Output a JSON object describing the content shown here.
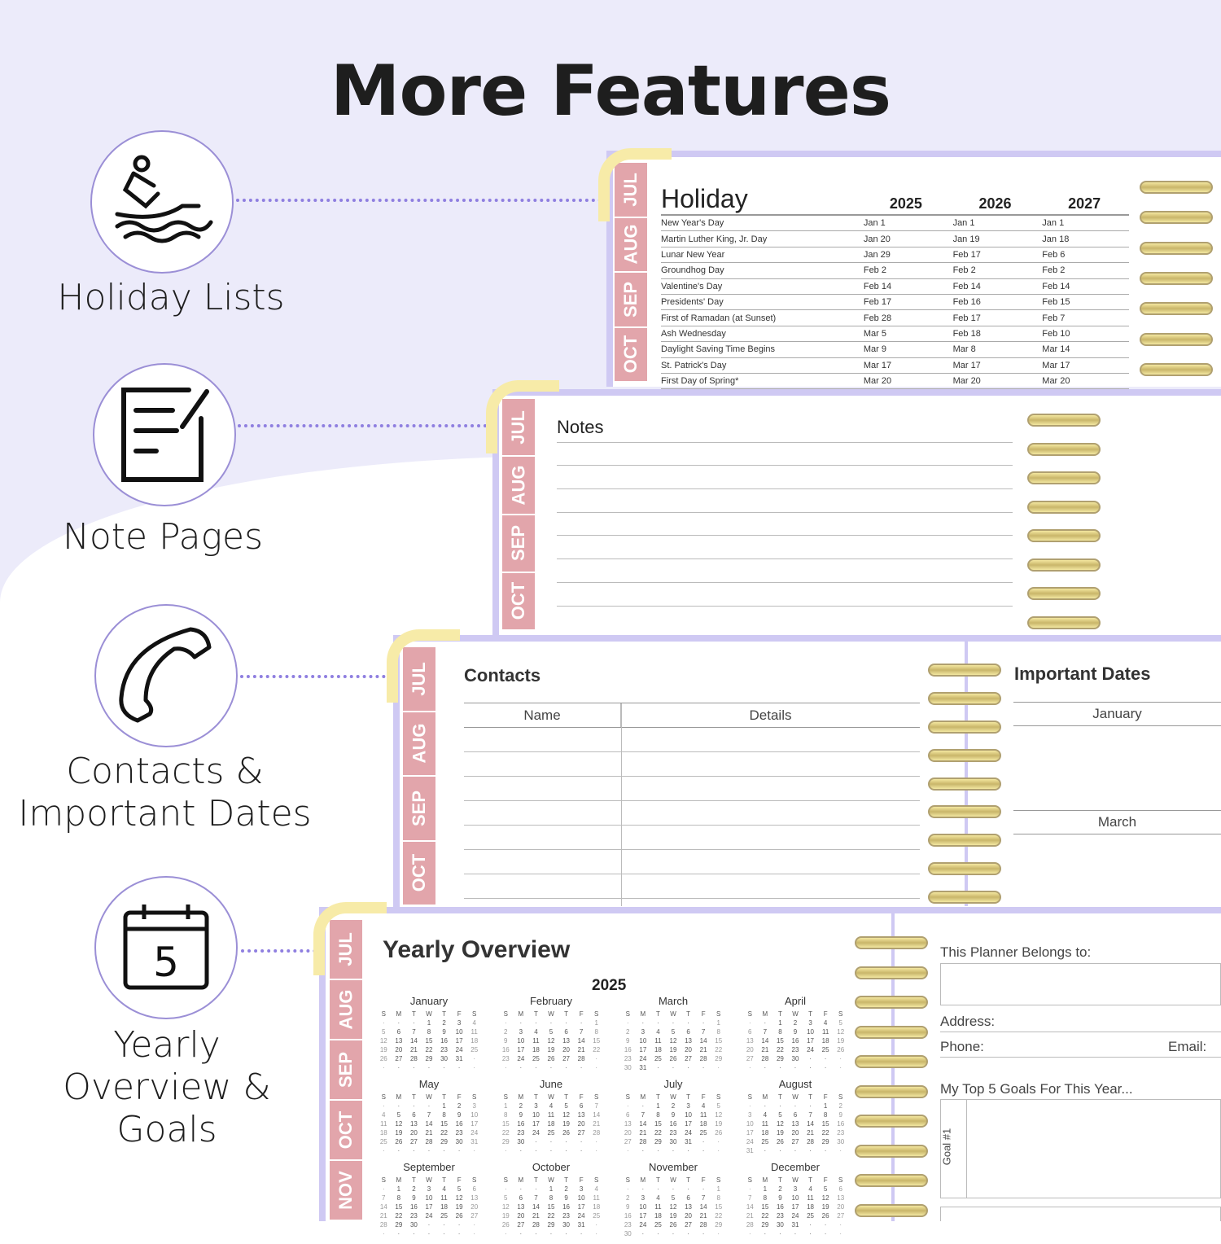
{
  "title": "More Features",
  "features": [
    {
      "label": "Holiday Lists",
      "icon": "jet-ski-icon"
    },
    {
      "label": "Note Pages",
      "icon": "notepad-icon"
    },
    {
      "label": "Contacts & Important Dates",
      "icon": "phone-icon"
    },
    {
      "label": "Yearly Overview & Goals",
      "icon": "calendar-icon",
      "icon_text": "5"
    }
  ],
  "tabs": [
    "JUL",
    "AUG",
    "SEP",
    "OCT",
    "NOV"
  ],
  "holiday": {
    "title": "Holiday",
    "years": [
      "2025",
      "2026",
      "2027"
    ],
    "rows": [
      [
        "New Year's Day",
        "Jan 1",
        "Jan 1",
        "Jan 1"
      ],
      [
        "Martin Luther King, Jr. Day",
        "Jan 20",
        "Jan 19",
        "Jan 18"
      ],
      [
        "Lunar New Year",
        "Jan 29",
        "Feb 17",
        "Feb 6"
      ],
      [
        "Groundhog Day",
        "Feb 2",
        "Feb 2",
        "Feb 2"
      ],
      [
        "Valentine's Day",
        "Feb 14",
        "Feb 14",
        "Feb 14"
      ],
      [
        "Presidents' Day",
        "Feb 17",
        "Feb 16",
        "Feb 15"
      ],
      [
        "First of Ramadan (at Sunset)",
        "Feb 28",
        "Feb 17",
        "Feb 7"
      ],
      [
        "Ash Wednesday",
        "Mar 5",
        "Feb 18",
        "Feb 10"
      ],
      [
        "Daylight Saving Time Begins",
        "Mar 9",
        "Mar 8",
        "Mar 14"
      ],
      [
        "St. Patrick's Day",
        "Mar 17",
        "Mar 17",
        "Mar 17"
      ],
      [
        "First Day of Spring*",
        "Mar 20",
        "Mar 20",
        "Mar 20"
      ]
    ]
  },
  "notes": {
    "title": "Notes"
  },
  "contacts": {
    "title": "Contacts",
    "col_name": "Name",
    "col_details": "Details"
  },
  "important_dates": {
    "title": "Important Dates",
    "months": [
      "January",
      "March"
    ]
  },
  "yearly": {
    "title": "Yearly Overview",
    "year": "2025",
    "weekdays": [
      "S",
      "M",
      "T",
      "W",
      "T",
      "F",
      "S"
    ],
    "months": [
      "January",
      "February",
      "March",
      "April",
      "May",
      "June",
      "July",
      "August",
      "September",
      "October",
      "November",
      "December"
    ]
  },
  "belongs": {
    "label": "This Planner Belongs to:",
    "address": "Address:",
    "phone": "Phone:",
    "email": "Email:",
    "goals_title": "My Top 5 Goals For This Year...",
    "goal1": "Goal #1"
  },
  "colors": {
    "accent": "#8f7fe0",
    "tab": "#e2a5ab",
    "clip": "#f7eba8",
    "background": "#ecebfa"
  }
}
